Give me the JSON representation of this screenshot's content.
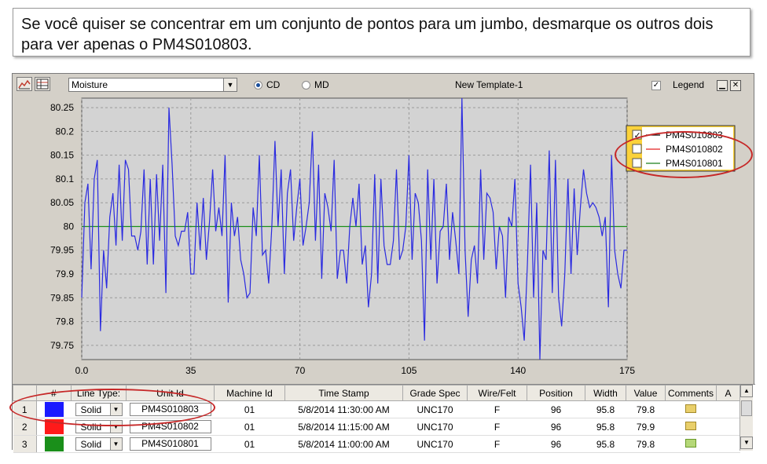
{
  "caption": "Se você quiser se concentrar em um conjunto de pontos para um jumbo, desmarque os outros dois para ver apenas o PM4S010803.",
  "toolbar": {
    "measurement": "Moisture",
    "radio_cd": "CD",
    "radio_md": "MD",
    "template_name": "New Template-1",
    "legend_label": "Legend",
    "legend_checked": true,
    "icons": [
      "trend-chart-icon",
      "table-view-icon",
      "minimize-icon",
      "close-icon"
    ]
  },
  "legend": [
    {
      "name": "PM4S010803",
      "checked": true,
      "color": "#000000"
    },
    {
      "name": "PM4S010802",
      "checked": false,
      "color": "#e32222"
    },
    {
      "name": "PM4S010801",
      "checked": false,
      "color": "#1a7f1a"
    }
  ],
  "chart_data": {
    "type": "line",
    "ylim": [
      79.72,
      80.27
    ],
    "xlim": [
      0,
      175
    ],
    "yticks": [
      "80.25",
      "80.2",
      "80.15",
      "80.1",
      "80.05",
      "80",
      "79.95",
      "79.9",
      "79.85",
      "79.8",
      "79.75"
    ],
    "xticks": [
      "0.0",
      "35",
      "70",
      "105",
      "140",
      "175"
    ],
    "reference_line": 80.0,
    "series": [
      {
        "name": "PM4S010803",
        "color": "#2a2ae0",
        "x": [
          0,
          1,
          2,
          3,
          4,
          5,
          6,
          7,
          8,
          9,
          10,
          11,
          12,
          13,
          14,
          15,
          16,
          17,
          18,
          19,
          20,
          21,
          22,
          23,
          24,
          25,
          26,
          27,
          28,
          29,
          30,
          31,
          32,
          33,
          34,
          35,
          36,
          37,
          38,
          39,
          40,
          41,
          42,
          43,
          44,
          45,
          46,
          47,
          48,
          49,
          50,
          51,
          52,
          53,
          54,
          55,
          56,
          57,
          58,
          59,
          60,
          61,
          62,
          63,
          64,
          65,
          66,
          67,
          68,
          69,
          70,
          71,
          72,
          73,
          74,
          75,
          76,
          77,
          78,
          79,
          80,
          81,
          82,
          83,
          84,
          85,
          86,
          87,
          88,
          89,
          90,
          91,
          92,
          93,
          94,
          95,
          96,
          97,
          98,
          99,
          100,
          101,
          102,
          103,
          104,
          105,
          106,
          107,
          108,
          109,
          110,
          111,
          112,
          113,
          114,
          115,
          116,
          117,
          118,
          119,
          120,
          121,
          122,
          123,
          124,
          125,
          126,
          127,
          128,
          129,
          130,
          131,
          132,
          133,
          134,
          135,
          136,
          137,
          138,
          139,
          140,
          141,
          142,
          143,
          144,
          145,
          146,
          147,
          148,
          149,
          150,
          151,
          152,
          153,
          154,
          155,
          156,
          157,
          158,
          159,
          160,
          161,
          162,
          163,
          164,
          165,
          166,
          167,
          168,
          169,
          170,
          171,
          172,
          173,
          174,
          175
        ],
        "values": [
          79.85,
          80.05,
          80.09,
          79.91,
          80.1,
          80.14,
          79.78,
          79.95,
          79.87,
          80.02,
          80.07,
          79.96,
          80.13,
          79.97,
          80.14,
          80.12,
          79.98,
          79.98,
          79.95,
          79.99,
          80.12,
          79.92,
          80.1,
          79.92,
          80.11,
          79.97,
          80.13,
          79.86,
          80.25,
          80.13,
          79.98,
          79.96,
          79.99,
          79.99,
          80.03,
          79.9,
          79.9,
          80.05,
          79.95,
          80.06,
          79.93,
          80.01,
          80.12,
          79.99,
          80.04,
          79.98,
          80.15,
          79.84,
          80.05,
          79.98,
          80.02,
          79.93,
          79.9,
          79.85,
          79.86,
          80.04,
          79.98,
          80.15,
          79.94,
          79.95,
          79.88,
          80.0,
          80.18,
          80.0,
          80.12,
          79.9,
          80.07,
          80.12,
          79.97,
          80.04,
          80.1,
          79.96,
          80.0,
          80.05,
          80.2,
          79.97,
          80.13,
          79.89,
          80.07,
          80.04,
          79.99,
          80.14,
          79.89,
          79.95,
          79.95,
          79.88,
          80.0,
          80.06,
          80.0,
          80.09,
          79.92,
          79.96,
          79.83,
          79.9,
          80.11,
          79.88,
          80.1,
          79.96,
          79.92,
          79.92,
          79.97,
          80.12,
          79.93,
          79.95,
          80.0,
          80.15,
          79.93,
          80.07,
          80.05,
          79.97,
          79.76,
          80.12,
          79.93,
          80.1,
          79.88,
          79.99,
          80.0,
          80.09,
          79.93,
          80.03,
          79.97,
          79.9,
          80.27,
          79.95,
          79.81,
          79.93,
          79.96,
          79.88,
          80.12,
          79.93,
          80.07,
          80.06,
          80.03,
          79.91,
          80.0,
          79.98,
          79.85,
          80.02,
          80.0,
          80.1,
          79.88,
          79.83,
          79.76,
          79.92,
          80.13,
          79.85,
          80.05,
          79.72,
          79.95,
          79.93,
          80.16,
          79.86,
          80.14,
          79.85,
          79.79,
          79.9,
          80.1,
          79.9,
          80.08,
          79.94,
          80.04,
          80.12,
          80.07,
          80.04,
          80.05,
          80.04,
          80.02,
          79.98,
          80.02,
          79.83,
          80.15,
          79.95,
          79.9,
          79.87,
          79.95,
          79.95
        ]
      }
    ]
  },
  "table": {
    "columns": [
      "#",
      "Line Type:",
      "Unit Id",
      "Machine Id",
      "Time Stamp",
      "Grade Spec",
      "Wire/Felt",
      "Position",
      "Width",
      "Value",
      "Comments",
      "A"
    ],
    "rows": [
      {
        "num": "1",
        "color": "#1a1aff",
        "line_type": "Solid",
        "unit_id": "PM4S010803",
        "machine_id": "01",
        "time_stamp": "5/8/2014 11:30:00 AM",
        "grade_spec": "UNC170",
        "wire_felt": "F",
        "position": "96",
        "width": "95.8",
        "value": "79.8",
        "comment_icon": "comment-folder-icon"
      },
      {
        "num": "2",
        "color": "#ff1a1a",
        "line_type": "Solid",
        "unit_id": "PM4S010802",
        "machine_id": "01",
        "time_stamp": "5/8/2014 11:15:00 AM",
        "grade_spec": "UNC170",
        "wire_felt": "F",
        "position": "96",
        "width": "95.8",
        "value": "79.9",
        "comment_icon": "comment-folder-icon"
      },
      {
        "num": "3",
        "color": "#1a8f1a",
        "line_type": "Solid",
        "unit_id": "PM4S010801",
        "machine_id": "01",
        "time_stamp": "5/8/2014 11:00:00 AM",
        "grade_spec": "UNC170",
        "wire_felt": "F",
        "position": "96",
        "width": "95.8",
        "value": "79.8",
        "comment_icon": "comment-add-icon"
      }
    ]
  }
}
